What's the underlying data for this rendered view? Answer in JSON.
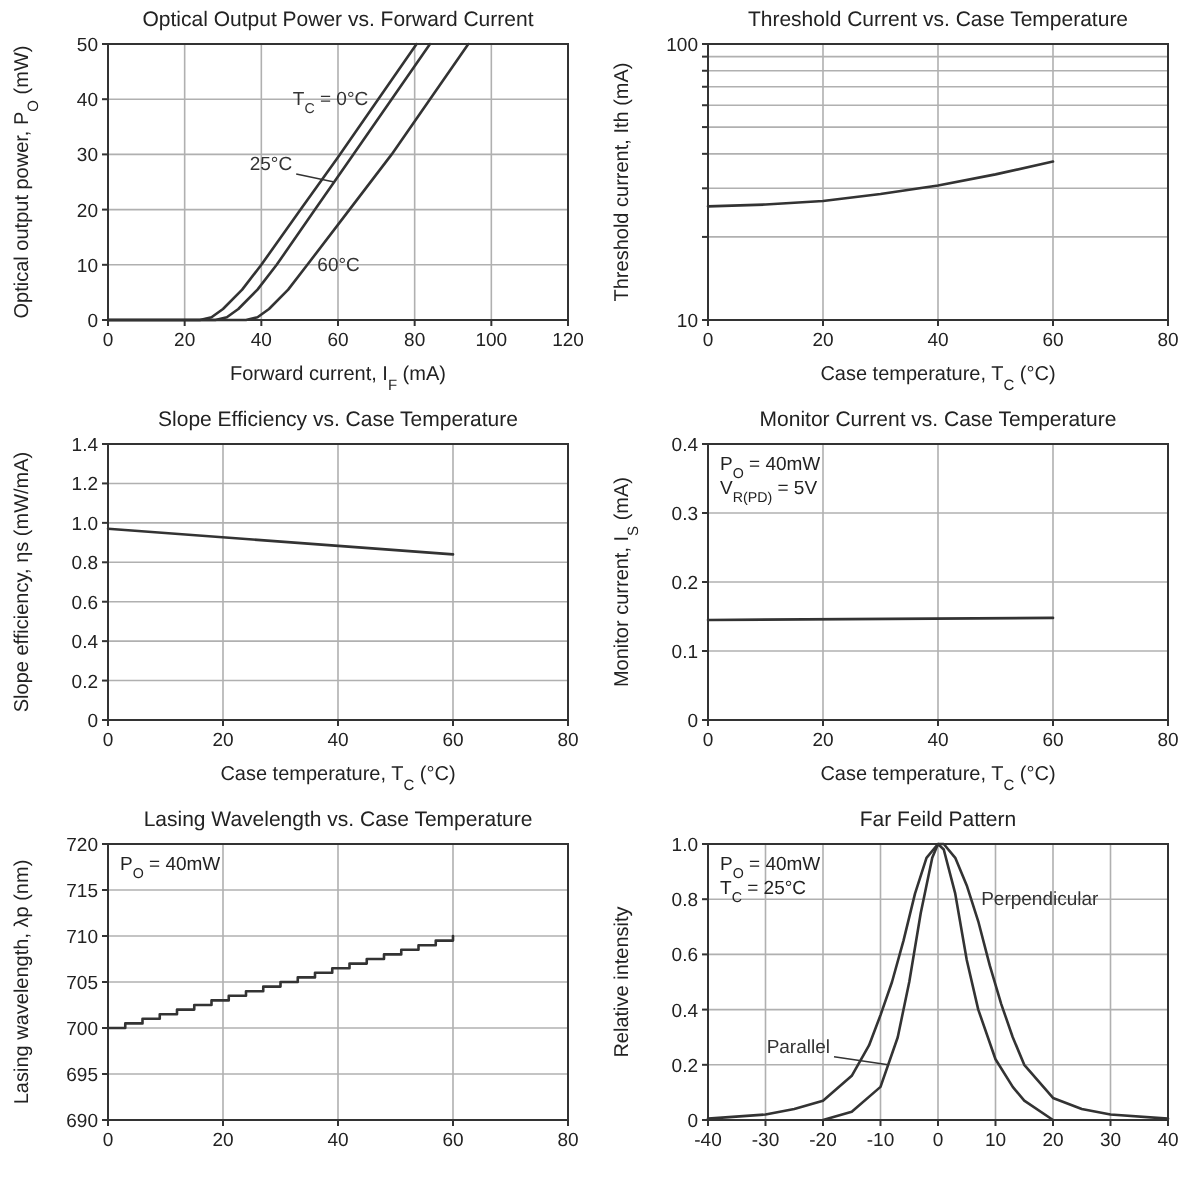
{
  "chart_data": [
    {
      "type": "line",
      "title": "Optical Output Power vs. Forward Current",
      "xlabel": "Forward current,  I$_{F}$  (mA)",
      "ylabel": "Optical output power,  P$_{O}$  (mW)",
      "xlim": [
        0,
        120
      ],
      "xticks": [
        0,
        20,
        40,
        60,
        80,
        100,
        120
      ],
      "ylim": [
        0,
        50
      ],
      "yticks": [
        0,
        10,
        20,
        30,
        40,
        50
      ],
      "grid": true,
      "series": [
        {
          "name": "T$_{C}$ = 0°C",
          "color": "#333333",
          "x": [
            0,
            24,
            27,
            30,
            35,
            40,
            50,
            60,
            70,
            80.5
          ],
          "values": [
            0,
            0,
            0.5,
            2,
            5.5,
            10,
            19.8,
            29.5,
            39.5,
            50
          ]
        },
        {
          "name": "25°C",
          "color": "#333333",
          "x": [
            0,
            28,
            31,
            34,
            39,
            44,
            54,
            64,
            74,
            84
          ],
          "values": [
            0,
            0,
            0.5,
            2,
            5.5,
            10,
            20,
            30,
            40,
            50
          ]
        },
        {
          "name": "60°C",
          "color": "#333333",
          "x": [
            0,
            36,
            39,
            42,
            47,
            52,
            63,
            74,
            84,
            94
          ],
          "values": [
            0,
            0,
            0.5,
            2,
            5.5,
            10,
            20,
            30,
            40,
            50
          ]
        }
      ]
    },
    {
      "type": "line",
      "title": "Threshold Current vs. Case Temperature",
      "xlabel": "Case temperature,  T$_{C}$  (°C)",
      "ylabel": "Threshold current,  Ith  (mA)",
      "log": "y",
      "xlim": [
        0,
        80
      ],
      "xticks": [
        0,
        20,
        40,
        60,
        80
      ],
      "ylim": [
        10,
        100
      ],
      "yticks": [
        10,
        {
          "value": 20,
          "label": null
        },
        {
          "value": 30,
          "label": null
        },
        {
          "value": 40,
          "label": null
        },
        {
          "value": 50,
          "label": null
        },
        {
          "value": 60,
          "label": null
        },
        {
          "value": 70,
          "label": null
        },
        {
          "value": 80,
          "label": null
        },
        {
          "value": 90,
          "label": null
        },
        100
      ],
      "grid": true,
      "series": [
        {
          "color": "#333333",
          "x": [
            0,
            10,
            20,
            30,
            40,
            50,
            60
          ],
          "values": [
            25.8,
            26.2,
            27,
            28.6,
            30.7,
            33.7,
            37.5
          ]
        }
      ]
    },
    {
      "type": "line",
      "title": "Slope Efficiency vs. Case Temperature",
      "xlabel": "Case temperature,  T$_{C}$  (°C)",
      "ylabel": "Slope efficiency,  ηs  (mW/mA)",
      "xlim": [
        0,
        80
      ],
      "xticks": [
        0,
        20,
        40,
        60,
        80
      ],
      "ylim": [
        0,
        1.4
      ],
      "yticks": [
        0,
        0.2,
        0.4,
        0.6,
        0.8,
        {
          "value": 1,
          "label": "1.0"
        },
        1.2,
        1.4
      ],
      "grid": true,
      "series": [
        {
          "color": "#333333",
          "x": [
            0,
            60
          ],
          "values": [
            0.97,
            0.84
          ]
        }
      ]
    },
    {
      "type": "line",
      "title": "Monitor Current vs. Case Temperature",
      "xlabel": "Case temperature,  T$_{C}$  (°C)",
      "ylabel": "Monitor current,  I$_{S}$  (mA)",
      "annotations": [
        "P$_{O}$ = 40mW",
        "V$_{R(PD)}$ = 5V"
      ],
      "xlim": [
        0,
        80
      ],
      "xticks": [
        0,
        20,
        40,
        60,
        80
      ],
      "ylim": [
        0,
        0.4
      ],
      "yticks": [
        0,
        0.1,
        0.2,
        0.3,
        0.4
      ],
      "grid": true,
      "series": [
        {
          "color": "#333333",
          "x": [
            0,
            60
          ],
          "values": [
            0.145,
            0.148
          ]
        }
      ]
    },
    {
      "type": "step",
      "title": "Lasing Wavelength vs. Case Temperature",
      "ylabel": "Lasing wavelength,  λp  (nm)",
      "annotations": [
        "P$_{O}$ = 40mW"
      ],
      "xlim": [
        0,
        80
      ],
      "xticks": [
        0,
        20,
        40,
        60,
        80
      ],
      "ylim": [
        690,
        720
      ],
      "yticks": [
        690,
        695,
        700,
        705,
        710,
        715,
        720
      ],
      "grid": true,
      "series": [
        {
          "color": "#333333",
          "x": [
            0,
            3,
            6,
            9,
            12,
            15,
            18,
            21,
            24,
            27,
            30,
            33,
            36,
            39,
            42,
            45,
            48,
            51,
            54,
            57,
            60
          ],
          "values": [
            700,
            700.5,
            701,
            701.5,
            702,
            702.5,
            703,
            703.5,
            704,
            704.5,
            705,
            705.5,
            706,
            706.5,
            707,
            707.5,
            708,
            708.5,
            709,
            709.5,
            710
          ]
        }
      ]
    },
    {
      "type": "line",
      "title": "Far Feild Pattern",
      "ylabel": "Relative intensity",
      "annotations": [
        "P$_{O}$ = 40mW",
        "T$_{C}$ = 25°C"
      ],
      "xlim": [
        -40,
        40
      ],
      "xticks": [
        -40,
        -30,
        -20,
        -10,
        0,
        10,
        20,
        30,
        40
      ],
      "ylim": [
        0,
        1
      ],
      "yticks": [
        0,
        0.2,
        0.4,
        0.6,
        0.8,
        {
          "value": 1,
          "label": "1.0"
        }
      ],
      "grid": true,
      "series": [
        {
          "name": "Perpendicular",
          "color": "#333333",
          "x": [
            -40,
            -30,
            -25,
            -20,
            -15,
            -12,
            -10,
            -8,
            -6,
            -4,
            -2,
            0,
            1,
            3,
            5,
            7,
            9,
            11,
            13,
            15,
            20,
            25,
            30,
            40
          ],
          "values": [
            0.005,
            0.02,
            0.04,
            0.07,
            0.16,
            0.27,
            0.38,
            0.5,
            0.65,
            0.82,
            0.95,
            1.0,
            1.0,
            0.95,
            0.85,
            0.72,
            0.56,
            0.42,
            0.3,
            0.2,
            0.08,
            0.04,
            0.02,
            0.005
          ]
        },
        {
          "name": "Parallel",
          "color": "#333333",
          "x": [
            -20,
            -15,
            -10,
            -7,
            -5,
            -3,
            -1,
            0,
            1,
            3,
            5,
            7,
            10,
            13,
            15,
            20
          ],
          "values": [
            0,
            0.03,
            0.12,
            0.3,
            0.5,
            0.75,
            0.95,
            1.0,
            0.98,
            0.82,
            0.58,
            0.4,
            0.22,
            0.12,
            0.07,
            0
          ]
        }
      ]
    }
  ]
}
